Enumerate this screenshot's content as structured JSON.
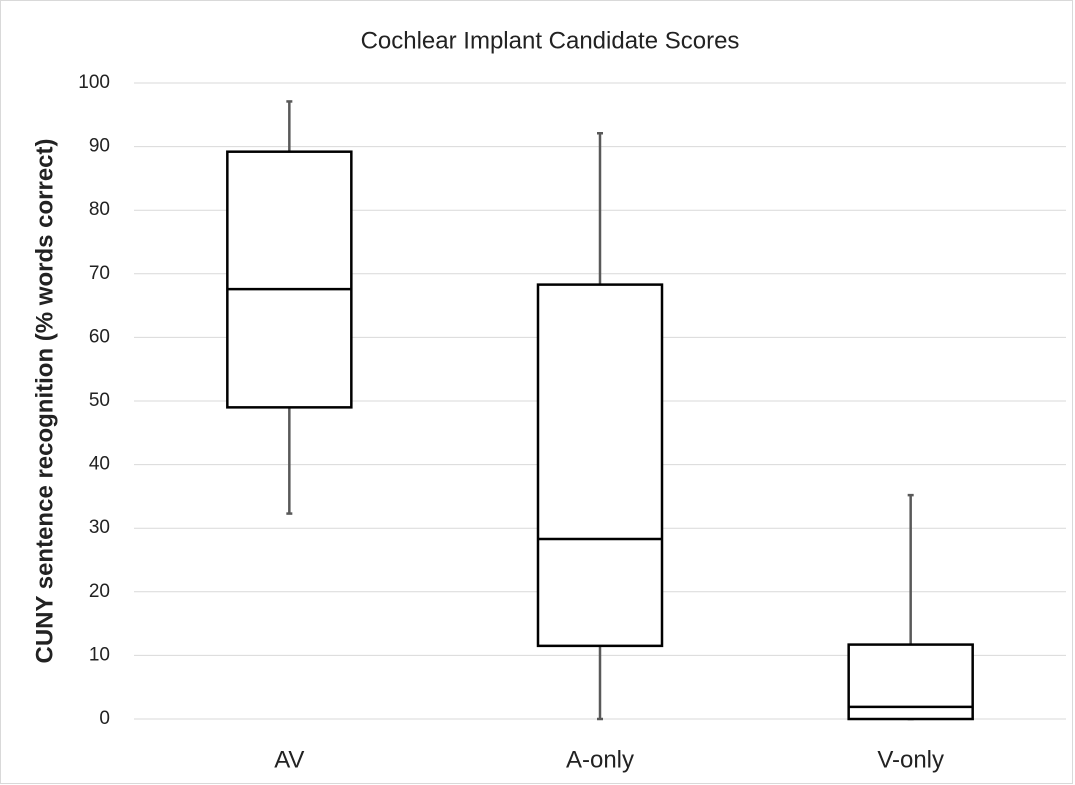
{
  "chart_data": {
    "type": "box",
    "title": "Cochlear Implant Candidate Scores",
    "y_label": "CUNY sentence recognition (% words correct)",
    "categories": [
      "AV",
      "A-only",
      "V-only"
    ],
    "min": [
      32.3,
      0,
      0
    ],
    "q1": [
      49,
      11.5,
      0
    ],
    "median": [
      67.6,
      28.3,
      1.9
    ],
    "q3": [
      89.2,
      68.3,
      11.7
    ],
    "max": [
      97.1,
      92.1,
      35.2
    ],
    "box_color": "#000000",
    "whisker_color": "#595959",
    "ylim": [
      0,
      100
    ],
    "yticks": [
      0,
      10,
      20,
      30,
      40,
      50,
      60,
      70,
      80,
      90,
      100
    ],
    "grid": true
  }
}
